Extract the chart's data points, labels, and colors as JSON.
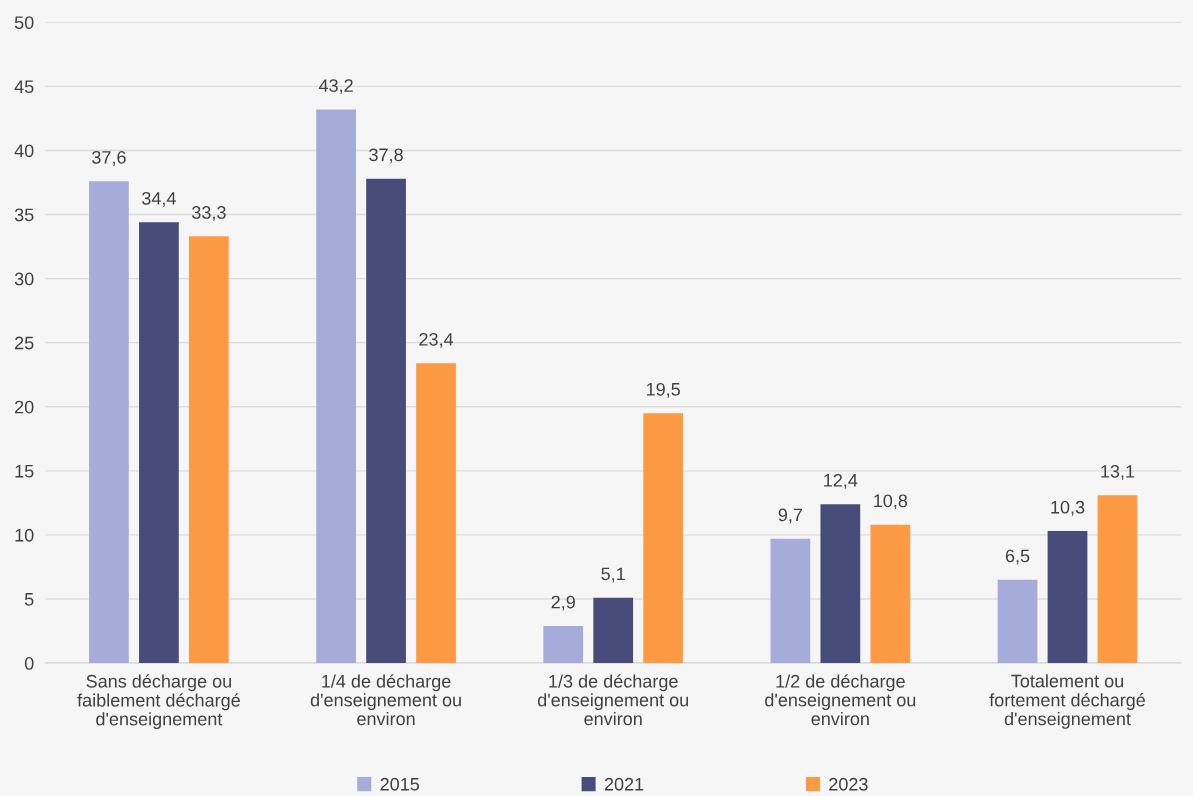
{
  "chart_data": {
    "type": "bar",
    "categories": [
      "Sans décharge ou\nfaiblement déchargé\nd'enseignement",
      "1/4 de décharge\nd'enseignement ou\nenviron",
      "1/3 de décharge\nd'enseignement ou\nenviron",
      "1/2 de décharge\nd'enseignement ou\nenviron",
      "Totalement ou\nfortement déchargé\nd'enseignement"
    ],
    "series": [
      {
        "name": "2015",
        "color": "#a6acd9",
        "values": [
          37.6,
          43.2,
          2.9,
          9.7,
          6.5
        ],
        "value_labels": [
          "37,6",
          "43,2",
          "2,9",
          "9,7",
          "6,5"
        ]
      },
      {
        "name": "2021",
        "color": "#484c7a",
        "values": [
          34.4,
          37.8,
          5.1,
          12.4,
          10.3
        ],
        "value_labels": [
          "34,4",
          "37,8",
          "5,1",
          "12,4",
          "10,3"
        ]
      },
      {
        "name": "2023",
        "color": "#fd9a43",
        "values": [
          33.3,
          23.4,
          19.5,
          10.8,
          13.1
        ],
        "value_labels": [
          "33,3",
          "23,4",
          "19,5",
          "10,8",
          "13,1"
        ]
      }
    ],
    "ylim": [
      0,
      50
    ],
    "yticks": [
      0,
      5,
      10,
      15,
      20,
      25,
      30,
      35,
      40,
      45,
      50
    ],
    "grid": "y",
    "legend": "bottom"
  }
}
